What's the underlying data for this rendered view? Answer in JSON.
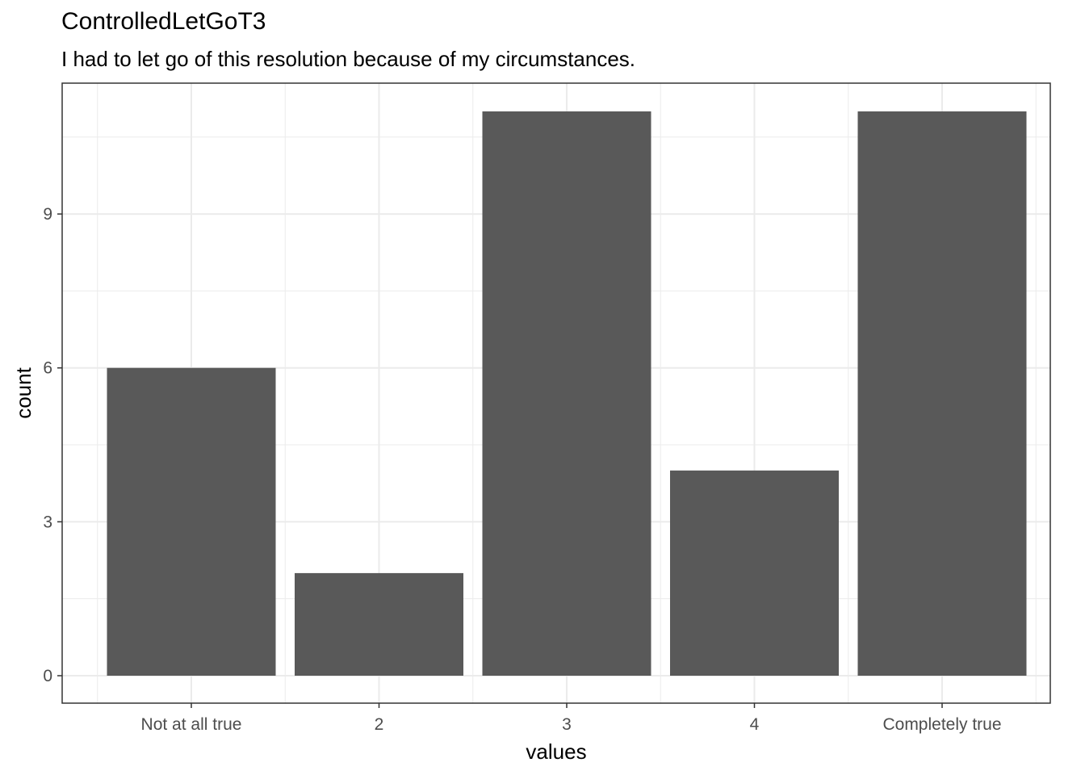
{
  "chart_data": {
    "type": "bar",
    "title": "ControlledLetGoT3",
    "subtitle": "I had to let go of this resolution because of my circumstances.",
    "xlabel": "values",
    "ylabel": "count",
    "categories": [
      "Not at all true",
      "2",
      "3",
      "4",
      "Completely true"
    ],
    "values": [
      6,
      2,
      11,
      4,
      11
    ],
    "ylim": [
      0,
      11.55
    ],
    "yticks": [
      0,
      3,
      6,
      9
    ],
    "grid": true,
    "bar_color": "#595959",
    "grid_color": "#ebebeb",
    "panel_border_color": "#333333"
  }
}
